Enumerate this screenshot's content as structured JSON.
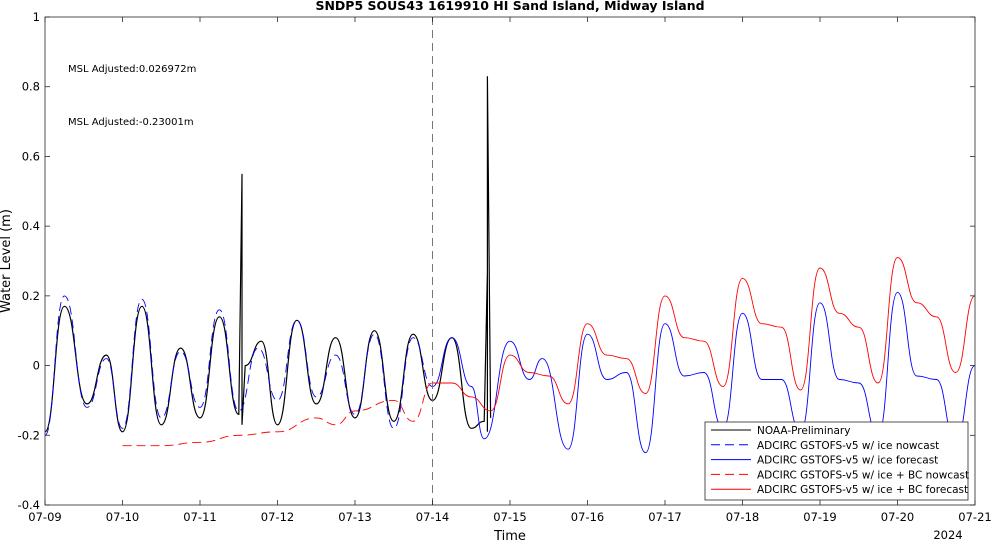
{
  "chart_data": {
    "type": "line",
    "title": "SNDP5 SOUS43 1619910 HI Sand Island, Midway Island",
    "xlabel": "Time",
    "ylabel": "Water Level (m)",
    "x_year_label": "2024",
    "xlim": [
      "2024-07-09",
      "2024-07-21"
    ],
    "ylim": [
      -0.4,
      1
    ],
    "x_tick_labels": [
      "07-09",
      "07-10",
      "07-11",
      "07-12",
      "07-13",
      "07-14",
      "07-15",
      "07-16",
      "07-17",
      "07-18",
      "07-19",
      "07-20",
      "07-21"
    ],
    "y_tick_labels": [
      "-0.4",
      "-0.2",
      "0",
      "0.2",
      "0.4",
      "0.6",
      "0.8",
      "1"
    ],
    "y_ticks": [
      -0.4,
      -0.2,
      0,
      0.2,
      0.4,
      0.6,
      0.8,
      1
    ],
    "grid": false,
    "nowcast_forecast_divider": "2024-07-14",
    "legend_position": "bottom-right",
    "annotations": [
      {
        "text": "MSL Adjusted:0.026972m",
        "color": "#0000ff"
      },
      {
        "text": "MSL Adjusted:-0.23001m",
        "color": "#ff0000"
      }
    ],
    "series": [
      {
        "name": "NOAA-Preliminary",
        "color": "#000000",
        "style": "solid",
        "x": [
          "07-09 00:00",
          "07-09 06:00",
          "07-09 13:00",
          "07-09 19:00",
          "07-10 00:00",
          "07-10 06:00",
          "07-10 12:00",
          "07-10 18:00",
          "07-11 00:00",
          "07-11 06:00",
          "07-11 12:00",
          "07-11 13:00",
          "07-11 13:00",
          "07-11 14:00",
          "07-11 19:00",
          "07-12 00:00",
          "07-12 06:00",
          "07-12 12:00",
          "07-12 18:00",
          "07-13 00:00",
          "07-13 06:00",
          "07-13 12:00",
          "07-13 18:00",
          "07-14 00:00",
          "07-14 06:00",
          "07-14 12:00",
          "07-14 16:00",
          "07-14 17:00",
          "07-14 17:00",
          "07-14 17:00",
          "07-14 18:00",
          "07-14 18:00",
          "07-14 18:00"
        ],
        "y": [
          -0.19,
          0.17,
          -0.11,
          0.03,
          -0.19,
          0.17,
          -0.17,
          0.05,
          -0.15,
          0.14,
          -0.14,
          0.55,
          -0.17,
          0.0,
          0.07,
          -0.17,
          0.13,
          -0.11,
          0.08,
          -0.15,
          0.1,
          -0.16,
          0.09,
          -0.1,
          0.08,
          -0.18,
          -0.16,
          0.27,
          -0.19,
          0.83,
          -0.15,
          -0.15,
          -0.15
        ]
      },
      {
        "name": "ADCIRC GSTOFS-v5 w/ ice nowcast",
        "color": "#0000ff",
        "style": "dashed",
        "x": [
          "07-09 00:00",
          "07-09 06:00",
          "07-09 13:00",
          "07-09 19:00",
          "07-10 00:00",
          "07-10 06:00",
          "07-10 12:00",
          "07-10 18:00",
          "07-11 00:00",
          "07-11 06:00",
          "07-11 12:00",
          "07-11 18:00",
          "07-12 00:00",
          "07-12 06:00",
          "07-12 12:00",
          "07-12 18:00",
          "07-13 00:00",
          "07-13 06:00",
          "07-13 12:00",
          "07-13 18:00",
          "07-14 00:00"
        ],
        "y": [
          -0.2,
          0.2,
          -0.12,
          0.02,
          -0.18,
          0.19,
          -0.15,
          0.04,
          -0.12,
          0.16,
          -0.13,
          0.05,
          -0.1,
          0.13,
          -0.09,
          0.03,
          -0.14,
          0.09,
          -0.18,
          0.08,
          -0.06
        ]
      },
      {
        "name": "ADCIRC GSTOFS-v5 w/ ice forecast",
        "color": "#0000ff",
        "style": "solid",
        "x": [
          "07-14 00:00",
          "07-14 06:00",
          "07-14 12:00",
          "07-14 16:00",
          "07-15 00:00",
          "07-15 06:00",
          "07-15 10:00",
          "07-15 18:00",
          "07-16 00:00",
          "07-16 06:00",
          "07-16 12:00",
          "07-16 18:00",
          "07-17 00:00",
          "07-17 06:00",
          "07-17 12:00",
          "07-17 18:00",
          "07-18 00:00",
          "07-18 06:00",
          "07-18 12:00",
          "07-18 18:00",
          "07-19 00:00",
          "07-19 06:00",
          "07-19 12:00",
          "07-19 18:00",
          "07-20 00:00",
          "07-20 06:00",
          "07-20 12:00",
          "07-20 18:00",
          "07-21 00:00"
        ],
        "y": [
          -0.06,
          0.08,
          -0.06,
          -0.21,
          0.07,
          -0.04,
          0.02,
          -0.24,
          0.09,
          -0.04,
          -0.02,
          -0.25,
          0.12,
          -0.03,
          -0.02,
          -0.18,
          0.15,
          -0.04,
          -0.04,
          -0.19,
          0.18,
          -0.04,
          -0.05,
          -0.2,
          0.21,
          -0.03,
          -0.04,
          -0.22,
          0.0
        ]
      },
      {
        "name": "ADCIRC GSTOFS-v5 w/ ice + BC nowcast",
        "color": "#ff0000",
        "style": "dashed",
        "x": [
          "07-10 00:00",
          "07-10 12:00",
          "07-11 00:00",
          "07-11 12:00",
          "07-12 00:00",
          "07-12 12:00",
          "07-12 18:00",
          "07-13 00:00",
          "07-13 12:00",
          "07-13 18:00",
          "07-14 00:00"
        ],
        "y": [
          -0.23,
          -0.23,
          -0.22,
          -0.2,
          -0.19,
          -0.15,
          -0.17,
          -0.13,
          -0.1,
          -0.16,
          -0.05
        ]
      },
      {
        "name": "ADCIRC GSTOFS-v5 w/ ice + BC forecast",
        "color": "#ff0000",
        "style": "solid",
        "x": [
          "07-14 00:00",
          "07-14 06:00",
          "07-14 12:00",
          "07-14 18:00",
          "07-15 00:00",
          "07-15 06:00",
          "07-15 12:00",
          "07-15 18:00",
          "07-16 00:00",
          "07-16 06:00",
          "07-16 12:00",
          "07-16 18:00",
          "07-17 00:00",
          "07-17 06:00",
          "07-17 12:00",
          "07-17 18:00",
          "07-18 00:00",
          "07-18 06:00",
          "07-18 12:00",
          "07-18 18:00",
          "07-19 00:00",
          "07-19 06:00",
          "07-19 12:00",
          "07-19 18:00",
          "07-20 00:00",
          "07-20 06:00",
          "07-20 12:00",
          "07-20 18:00",
          "07-21 00:00"
        ],
        "y": [
          -0.05,
          -0.05,
          -0.09,
          -0.13,
          0.03,
          -0.02,
          -0.03,
          -0.11,
          0.12,
          0.03,
          0.02,
          -0.08,
          0.2,
          0.08,
          0.07,
          -0.06,
          0.25,
          0.12,
          0.11,
          -0.07,
          0.28,
          0.15,
          0.11,
          -0.05,
          0.31,
          0.18,
          0.14,
          -0.02,
          0.2
        ]
      }
    ]
  }
}
